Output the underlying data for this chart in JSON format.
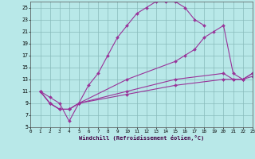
{
  "xlabel": "Windchill (Refroidissement éolien,°C)",
  "bg_color": "#b8e8e8",
  "grid_color": "#88bbbb",
  "line_color": "#993399",
  "xlim": [
    0,
    23
  ],
  "ylim": [
    5,
    26
  ],
  "xticks": [
    0,
    1,
    2,
    3,
    4,
    5,
    6,
    7,
    8,
    9,
    10,
    11,
    12,
    13,
    14,
    15,
    16,
    17,
    18,
    19,
    20,
    21,
    22,
    23
  ],
  "yticks": [
    5,
    7,
    9,
    11,
    13,
    15,
    17,
    19,
    21,
    23,
    25
  ],
  "series": [
    {
      "x": [
        1,
        2,
        3,
        4,
        5,
        6,
        7,
        8,
        9,
        10,
        11,
        12,
        13,
        14,
        15,
        16,
        17,
        18
      ],
      "y": [
        11,
        10,
        9,
        6,
        9,
        12,
        14,
        17,
        20,
        22,
        24,
        25,
        26,
        26,
        26,
        25,
        23,
        22
      ],
      "has_markers": true
    },
    {
      "x": [
        1,
        2,
        3,
        4,
        5,
        10,
        15,
        16,
        17,
        18,
        19,
        20,
        21,
        22,
        23
      ],
      "y": [
        11,
        9,
        8,
        8,
        9,
        13,
        16,
        17,
        18,
        20,
        21,
        22,
        14,
        13,
        14
      ],
      "has_markers": true
    },
    {
      "x": [
        1,
        2,
        3,
        4,
        5,
        10,
        15,
        20,
        21,
        22,
        23
      ],
      "y": [
        11,
        9,
        8,
        8,
        9,
        11,
        13,
        14,
        13,
        13,
        14
      ],
      "has_markers": true
    },
    {
      "x": [
        1,
        2,
        3,
        4,
        5,
        10,
        15,
        20,
        21,
        22,
        23
      ],
      "y": [
        11,
        9,
        8,
        8,
        9,
        10.5,
        12,
        13,
        13,
        13,
        13.5
      ],
      "has_markers": true
    }
  ]
}
